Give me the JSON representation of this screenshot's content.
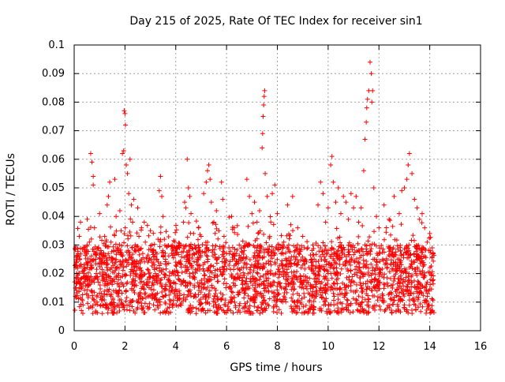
{
  "chart_data": {
    "type": "scatter",
    "title": "Day 215 of 2025, Rate Of TEC Index for receiver sin1",
    "xlabel": "GPS time / hours",
    "ylabel": "ROTI / TECUs",
    "xlim": [
      0,
      16
    ],
    "ylim": [
      0,
      0.1
    ],
    "xticks": [
      0,
      2,
      4,
      6,
      8,
      10,
      12,
      14,
      16
    ],
    "xtick_labels": [
      "0",
      "2",
      "4",
      "6",
      "8",
      "10",
      "12",
      "14",
      "16"
    ],
    "yticks": [
      0,
      0.01,
      0.02,
      0.03,
      0.04,
      0.05,
      0.06,
      0.07,
      0.08,
      0.09,
      0.1
    ],
    "ytick_labels": [
      "0",
      "0.01",
      "0.02",
      "0.03",
      "0.04",
      "0.05",
      "0.06",
      "0.07",
      "0.08",
      "0.09",
      "0.1"
    ],
    "grid": true,
    "marker": "+",
    "color": "#ff0000",
    "series": [
      {
        "name": "sin1",
        "points": [
          [
            0.05,
            0.012
          ],
          [
            0.1,
            0.02
          ],
          [
            0.15,
            0.027
          ],
          [
            0.2,
            0.033
          ],
          [
            0.25,
            0.038
          ],
          [
            0.3,
            0.015
          ],
          [
            0.35,
            0.009
          ],
          [
            0.4,
            0.022
          ],
          [
            0.5,
            0.018
          ],
          [
            0.6,
            0.031
          ],
          [
            0.65,
            0.062
          ],
          [
            0.7,
            0.059
          ],
          [
            0.75,
            0.054
          ],
          [
            0.75,
            0.051
          ],
          [
            0.8,
            0.036
          ],
          [
            0.85,
            0.025
          ],
          [
            0.9,
            0.01
          ],
          [
            1.0,
            0.041
          ],
          [
            1.05,
            0.028
          ],
          [
            1.1,
            0.019
          ],
          [
            1.2,
            0.033
          ],
          [
            1.3,
            0.044
          ],
          [
            1.35,
            0.047
          ],
          [
            1.4,
            0.052
          ],
          [
            1.45,
            0.031
          ],
          [
            1.5,
            0.024
          ],
          [
            1.55,
            0.014
          ],
          [
            1.6,
            0.053
          ],
          [
            1.65,
            0.04
          ],
          [
            1.7,
            0.029
          ],
          [
            1.75,
            0.02
          ],
          [
            1.8,
            0.042
          ],
          [
            1.85,
            0.035
          ],
          [
            1.9,
            0.062
          ],
          [
            1.95,
            0.063
          ],
          [
            1.97,
            0.077
          ],
          [
            2.0,
            0.076
          ],
          [
            2.02,
            0.072
          ],
          [
            2.05,
            0.058
          ],
          [
            2.1,
            0.055
          ],
          [
            2.15,
            0.048
          ],
          [
            2.2,
            0.06
          ],
          [
            2.25,
            0.044
          ],
          [
            2.3,
            0.038
          ],
          [
            2.35,
            0.046
          ],
          [
            2.4,
            0.03
          ],
          [
            2.5,
            0.043
          ],
          [
            2.55,
            0.033
          ],
          [
            2.6,
            0.022
          ],
          [
            2.65,
            0.036
          ],
          [
            2.7,
            0.027
          ],
          [
            2.8,
            0.031
          ],
          [
            2.9,
            0.024
          ],
          [
            3.0,
            0.035
          ],
          [
            3.1,
            0.028
          ],
          [
            3.2,
            0.02
          ],
          [
            3.3,
            0.032
          ],
          [
            3.35,
            0.049
          ],
          [
            3.4,
            0.054
          ],
          [
            3.45,
            0.047
          ],
          [
            3.5,
            0.04
          ],
          [
            3.55,
            0.032
          ],
          [
            3.6,
            0.025
          ],
          [
            3.7,
            0.018
          ],
          [
            3.9,
            0.028
          ],
          [
            4.0,
            0.024
          ],
          [
            4.1,
            0.018
          ],
          [
            4.2,
            0.03
          ],
          [
            4.3,
            0.038
          ],
          [
            4.35,
            0.045
          ],
          [
            4.4,
            0.043
          ],
          [
            4.45,
            0.06
          ],
          [
            4.5,
            0.05
          ],
          [
            4.55,
            0.047
          ],
          [
            4.6,
            0.041
          ],
          [
            4.7,
            0.034
          ],
          [
            4.8,
            0.029
          ],
          [
            4.9,
            0.036
          ],
          [
            5.0,
            0.033
          ],
          [
            5.1,
            0.048
          ],
          [
            5.2,
            0.052
          ],
          [
            5.25,
            0.056
          ],
          [
            5.3,
            0.058
          ],
          [
            5.35,
            0.053
          ],
          [
            5.4,
            0.045
          ],
          [
            5.5,
            0.038
          ],
          [
            5.6,
            0.042
          ],
          [
            5.7,
            0.035
          ],
          [
            5.8,
            0.052
          ],
          [
            5.85,
            0.046
          ],
          [
            5.9,
            0.033
          ],
          [
            6.0,
            0.027
          ],
          [
            6.2,
            0.04
          ],
          [
            6.3,
            0.036
          ],
          [
            6.5,
            0.03
          ],
          [
            6.7,
            0.028
          ],
          [
            6.8,
            0.053
          ],
          [
            6.9,
            0.047
          ],
          [
            7.0,
            0.041
          ],
          [
            7.1,
            0.045
          ],
          [
            7.2,
            0.038
          ],
          [
            7.3,
            0.042
          ],
          [
            7.4,
            0.064
          ],
          [
            7.42,
            0.069
          ],
          [
            7.44,
            0.075
          ],
          [
            7.46,
            0.079
          ],
          [
            7.48,
            0.082
          ],
          [
            7.5,
            0.084
          ],
          [
            7.52,
            0.055
          ],
          [
            7.6,
            0.047
          ],
          [
            7.7,
            0.033
          ],
          [
            7.8,
            0.048
          ],
          [
            7.9,
            0.051
          ],
          [
            8.0,
            0.041
          ],
          [
            8.2,
            0.03
          ],
          [
            8.4,
            0.044
          ],
          [
            8.6,
            0.047
          ],
          [
            8.8,
            0.036
          ],
          [
            9.0,
            0.033
          ],
          [
            9.2,
            0.029
          ],
          [
            9.4,
            0.03
          ],
          [
            9.6,
            0.044
          ],
          [
            9.7,
            0.052
          ],
          [
            9.8,
            0.048
          ],
          [
            9.9,
            0.038
          ],
          [
            10.0,
            0.043
          ],
          [
            10.1,
            0.058
          ],
          [
            10.15,
            0.061
          ],
          [
            10.2,
            0.052
          ],
          [
            10.3,
            0.045
          ],
          [
            10.4,
            0.05
          ],
          [
            10.5,
            0.041
          ],
          [
            10.6,
            0.047
          ],
          [
            10.7,
            0.045
          ],
          [
            10.8,
            0.039
          ],
          [
            10.9,
            0.048
          ],
          [
            11.0,
            0.043
          ],
          [
            11.1,
            0.047
          ],
          [
            11.2,
            0.038
          ],
          [
            11.3,
            0.043
          ],
          [
            11.4,
            0.056
          ],
          [
            11.45,
            0.067
          ],
          [
            11.5,
            0.073
          ],
          [
            11.52,
            0.078
          ],
          [
            11.55,
            0.081
          ],
          [
            11.6,
            0.084
          ],
          [
            11.65,
            0.094
          ],
          [
            11.7,
            0.09
          ],
          [
            11.72,
            0.08
          ],
          [
            11.75,
            0.084
          ],
          [
            11.8,
            0.05
          ],
          [
            11.9,
            0.04
          ],
          [
            12.0,
            0.036
          ],
          [
            12.2,
            0.044
          ],
          [
            12.4,
            0.039
          ],
          [
            12.6,
            0.047
          ],
          [
            12.8,
            0.041
          ],
          [
            12.9,
            0.049
          ],
          [
            13.0,
            0.05
          ],
          [
            13.1,
            0.053
          ],
          [
            13.15,
            0.058
          ],
          [
            13.2,
            0.062
          ],
          [
            13.3,
            0.055
          ],
          [
            13.4,
            0.046
          ],
          [
            13.5,
            0.043
          ],
          [
            13.6,
            0.039
          ],
          [
            13.7,
            0.041
          ],
          [
            13.8,
            0.036
          ],
          [
            13.9,
            0.031
          ],
          [
            14.0,
            0.034
          ],
          [
            14.1,
            0.029
          ]
        ]
      }
    ],
    "band_note": "Dense cloud of points between ~0.005 and ~0.03 TECUs spans 0 to 14.2 hours"
  }
}
